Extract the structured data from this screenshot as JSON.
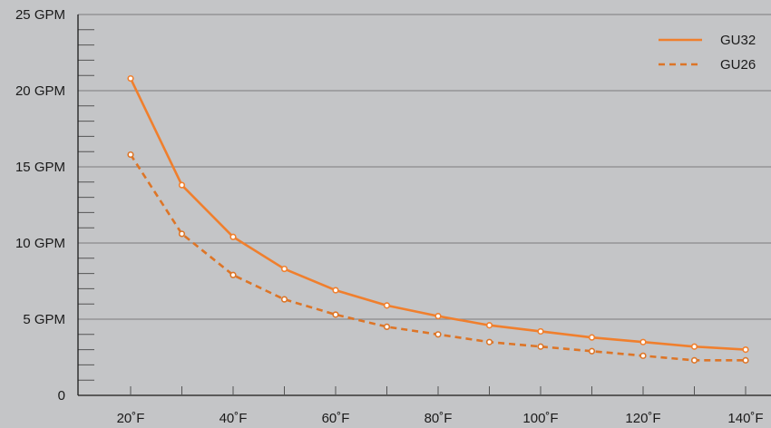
{
  "chart_data": {
    "type": "line",
    "title": "",
    "xlabel": "",
    "ylabel": "",
    "x": [
      20,
      30,
      40,
      50,
      60,
      70,
      80,
      90,
      100,
      110,
      120,
      130,
      140
    ],
    "xlim": [
      18,
      142
    ],
    "ylim": [
      0,
      25
    ],
    "ytick_values": [
      0,
      5,
      10,
      15,
      20,
      25
    ],
    "ytick_labels": [
      "0",
      "5 GPM",
      "10 GPM",
      "15 GPM",
      "20 GPM",
      "25 GPM"
    ],
    "xtick_values": [
      20,
      40,
      60,
      80,
      100,
      120,
      140
    ],
    "xtick_labels": [
      "20˚F",
      "40˚F",
      "60˚F",
      "80˚F",
      "100˚F",
      "120˚F",
      "140˚F"
    ],
    "grid": true,
    "legend": "top-right",
    "series": [
      {
        "name": "GU32",
        "style": "solid",
        "color": "#f07f2d",
        "values": [
          20.8,
          13.8,
          10.4,
          8.3,
          6.9,
          5.9,
          5.2,
          4.6,
          4.2,
          3.8,
          3.5,
          3.2,
          3.0
        ]
      },
      {
        "name": "GU26",
        "style": "dashed",
        "color": "#dd7527",
        "values": [
          15.8,
          10.6,
          7.9,
          6.3,
          5.3,
          4.5,
          4.0,
          3.5,
          3.2,
          2.9,
          2.6,
          2.3,
          2.3
        ]
      }
    ]
  }
}
